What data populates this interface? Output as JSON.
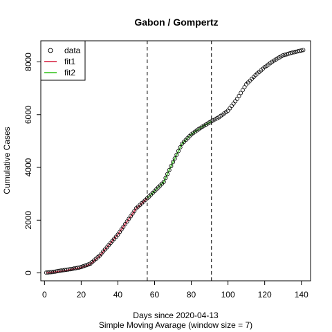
{
  "chart_data": {
    "type": "scatter",
    "title": "Gabon / Gompertz",
    "xlabel": "Days since 2020-04-13",
    "xlabel2": "Simple Moving Avarage (window size = 7)",
    "ylabel": "Cumulative Cases",
    "xlim": [
      -2,
      145
    ],
    "ylim": [
      -300,
      8800
    ],
    "x_ticks": [
      0,
      20,
      40,
      60,
      80,
      100,
      120,
      140
    ],
    "y_ticks": [
      0,
      2000,
      4000,
      6000,
      8000
    ],
    "grid": false,
    "legend_position": "top-left",
    "vlines": [
      56,
      91
    ],
    "legend": [
      {
        "name": "data",
        "kind": "point",
        "color": "#000000"
      },
      {
        "name": "fit1",
        "kind": "line",
        "color": "#DF536B"
      },
      {
        "name": "fit2",
        "kind": "line",
        "color": "#61D04F"
      }
    ],
    "data_anchors": {
      "x": [
        1,
        5,
        10,
        15,
        20,
        25,
        30,
        35,
        40,
        45,
        50,
        56,
        60,
        65,
        70,
        75,
        80,
        85,
        91,
        95,
        100,
        105,
        110,
        115,
        120,
        125,
        130,
        135,
        141
      ],
      "y": [
        10,
        40,
        100,
        150,
        220,
        350,
        650,
        1050,
        1450,
        1950,
        2450,
        2830,
        3100,
        3450,
        4200,
        4900,
        5250,
        5500,
        5750,
        5900,
        6150,
        6600,
        7150,
        7500,
        7800,
        8050,
        8250,
        8350,
        8450
      ]
    },
    "fit1": {
      "x": [
        1,
        10,
        20,
        25,
        30,
        35,
        40,
        45,
        50,
        56
      ],
      "y": [
        0,
        70,
        200,
        330,
        640,
        1050,
        1460,
        1950,
        2440,
        2830
      ]
    },
    "fit2": {
      "x": [
        56,
        60,
        65,
        70,
        75,
        80,
        85,
        91
      ],
      "y": [
        2830,
        3100,
        3450,
        4200,
        4900,
        5250,
        5500,
        5750
      ]
    }
  }
}
